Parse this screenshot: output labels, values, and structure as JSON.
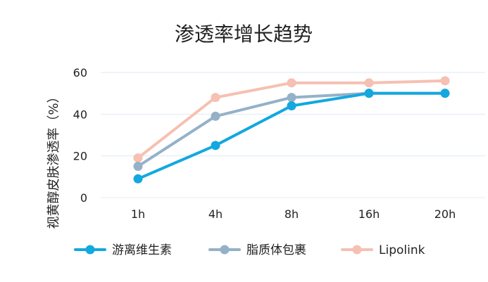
{
  "chart_data": {
    "type": "line",
    "title": "渗透率增长趋势",
    "xlabel": "",
    "ylabel": "视黄醇皮肤渗透率（%）",
    "categories": [
      "1h",
      "4h",
      "8h",
      "16h",
      "20h"
    ],
    "ylim": [
      0,
      60
    ],
    "yticks": [
      0,
      20,
      40,
      60
    ],
    "grid": true,
    "legend_position": "bottom",
    "series": [
      {
        "name": "游离维生素",
        "color": "#13a8df",
        "values": [
          9,
          25,
          44,
          50,
          50
        ]
      },
      {
        "name": "脂质体包裹",
        "color": "#94b1c8",
        "values": [
          15,
          39,
          48,
          50,
          50
        ]
      },
      {
        "name": "Lipolink",
        "color": "#f6c0b2",
        "values": [
          19,
          48,
          55,
          55,
          56
        ]
      }
    ]
  }
}
